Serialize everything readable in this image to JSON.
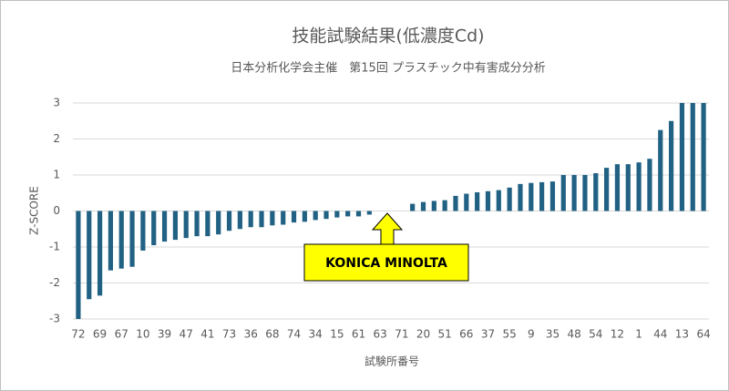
{
  "chart_data": {
    "type": "bar",
    "title": "技能試験結果(低濃度Cd)",
    "subtitle": "日本分析化学会主催　第15回 プラスチック中有害成分分析",
    "x_label": "試験所番号",
    "y_label": "Z-SCORE",
    "annotation": "KONICA MINOLTA",
    "categories": [
      "72",
      null,
      "69",
      null,
      "67",
      null,
      "10",
      null,
      "39",
      null,
      "47",
      null,
      "41",
      null,
      "73",
      null,
      "36",
      null,
      "68",
      null,
      "74",
      null,
      "34",
      null,
      "15",
      null,
      "61",
      null,
      "63",
      null,
      "71",
      null,
      "20",
      null,
      "51",
      null,
      "66",
      null,
      "37",
      null,
      "55",
      null,
      "9",
      null,
      "35",
      null,
      "48",
      null,
      "54",
      null,
      "12",
      null,
      "1",
      null,
      "44",
      null,
      "13",
      null,
      "64"
    ],
    "values": [
      -3.0,
      -2.45,
      -2.35,
      -1.65,
      -1.6,
      -1.55,
      -1.1,
      -0.95,
      -0.85,
      -0.8,
      -0.75,
      -0.7,
      -0.7,
      -0.65,
      -0.55,
      -0.5,
      -0.45,
      -0.45,
      -0.4,
      -0.38,
      -0.32,
      -0.3,
      -0.25,
      -0.22,
      -0.18,
      -0.15,
      -0.15,
      -0.1,
      0,
      0,
      0,
      0.2,
      0.25,
      0.28,
      0.3,
      0.42,
      0.48,
      0.52,
      0.55,
      0.58,
      0.65,
      0.75,
      0.78,
      0.8,
      0.82,
      1.0,
      1.0,
      1.0,
      1.05,
      1.2,
      1.3,
      1.3,
      1.35,
      1.45,
      2.25,
      2.5,
      3,
      3,
      3
    ],
    "color": "#216184",
    "ylim": [
      -3,
      3
    ],
    "yticks": [
      -3,
      -2,
      -1,
      0,
      1,
      2,
      3
    ],
    "grid": true
  }
}
